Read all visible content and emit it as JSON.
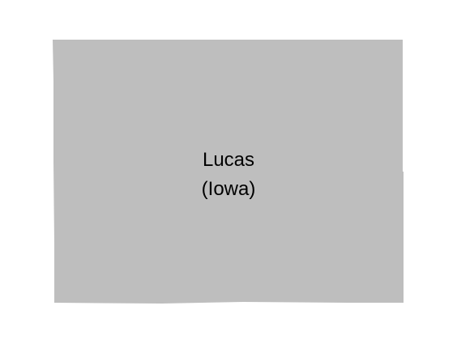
{
  "map": {
    "county_name": "Lucas",
    "state_name": "(Iowa)",
    "fill_color": "#bebebe",
    "background_color": "#ffffff",
    "text_color": "#000000"
  }
}
